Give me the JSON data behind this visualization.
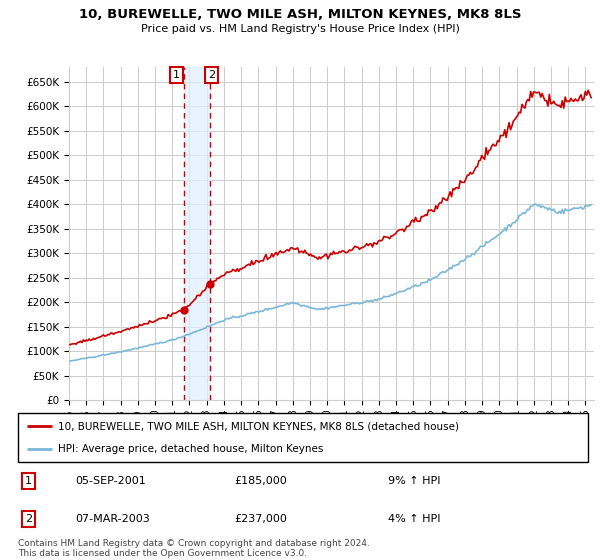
{
  "title": "10, BUREWELLE, TWO MILE ASH, MILTON KEYNES, MK8 8LS",
  "subtitle": "Price paid vs. HM Land Registry's House Price Index (HPI)",
  "legend_line1": "10, BUREWELLE, TWO MILE ASH, MILTON KEYNES, MK8 8LS (detached house)",
  "legend_line2": "HPI: Average price, detached house, Milton Keynes",
  "footer": "Contains HM Land Registry data © Crown copyright and database right 2024.\nThis data is licensed under the Open Government Licence v3.0.",
  "table": [
    {
      "num": "1",
      "date": "05-SEP-2001",
      "price": "£185,000",
      "hpi": "9% ↑ HPI"
    },
    {
      "num": "2",
      "date": "07-MAR-2003",
      "price": "£237,000",
      "hpi": "4% ↑ HPI"
    }
  ],
  "sale1_x": 2001.67,
  "sale1_y": 185000,
  "sale2_x": 2003.17,
  "sale2_y": 237000,
  "ylim": [
    0,
    680000
  ],
  "xlim_start": 1995.0,
  "xlim_end": 2025.5,
  "yticks": [
    0,
    50000,
    100000,
    150000,
    200000,
    250000,
    300000,
    350000,
    400000,
    450000,
    500000,
    550000,
    600000,
    650000
  ],
  "ytick_labels": [
    "£0",
    "£50K",
    "£100K",
    "£150K",
    "£200K",
    "£250K",
    "£300K",
    "£350K",
    "£400K",
    "£450K",
    "£500K",
    "£550K",
    "£600K",
    "£650K"
  ],
  "hpi_color": "#7ab8d9",
  "sale_color": "#cc0000",
  "vline_color": "#cc0000",
  "vline_fill": "#ddeeff",
  "grid_color": "#cccccc",
  "bg_color": "#ffffff",
  "label_border_color": "#cc0000"
}
